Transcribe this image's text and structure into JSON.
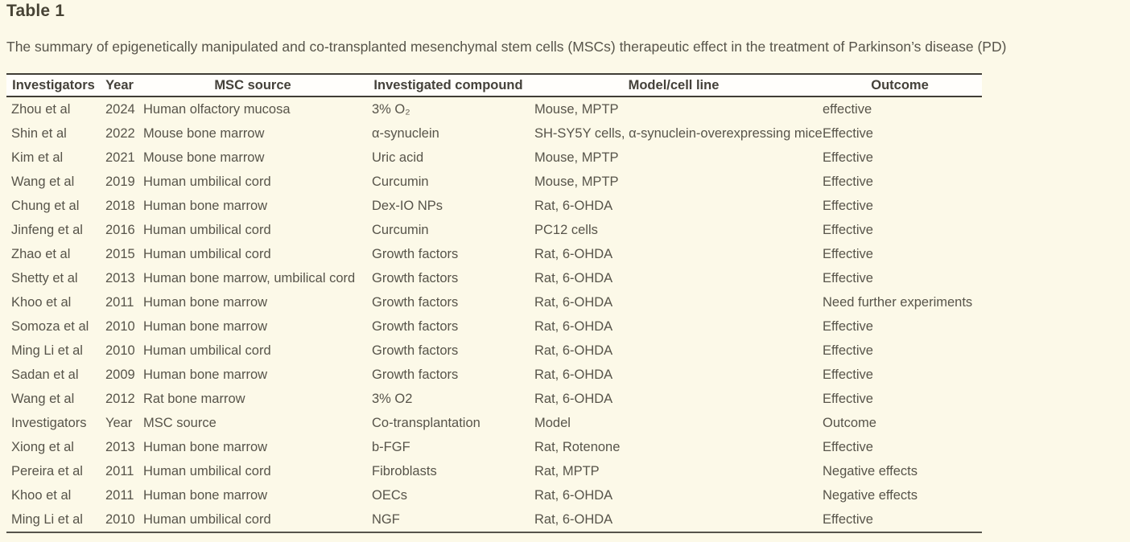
{
  "colors": {
    "page_background": "#fcf9e8",
    "header_background": "#fffefb",
    "border": "#403d35",
    "title_text": "#474335",
    "body_text": "#57544a"
  },
  "table": {
    "title": "Table 1",
    "caption": "The summary of epigenetically manipulated and co-transplanted mesenchymal stem cells (MSCs) therapeutic effect in the treatment of Parkinson’s disease (PD)",
    "columns": [
      "Investigators",
      "Year",
      "MSC source",
      "Investigated compound",
      "Model/cell line",
      "Outcome"
    ],
    "rows": [
      [
        "Zhou et al",
        "2024",
        "Human olfactory mucosa",
        "3% O₂",
        "Mouse, MPTP",
        "effective"
      ],
      [
        "Shin et al",
        "2022",
        "Mouse bone marrow",
        "α-synuclein",
        "SH-SY5Y cells, α-synuclein-overexpressing mice",
        "Effective"
      ],
      [
        "Kim et al",
        "2021",
        "Mouse bone marrow",
        "Uric acid",
        "Mouse, MPTP",
        "Effective"
      ],
      [
        "Wang et al",
        "2019",
        "Human umbilical cord",
        "Curcumin",
        "Mouse, MPTP",
        "Effective"
      ],
      [
        "Chung et al",
        "2018",
        "Human bone marrow",
        "Dex-IO NPs",
        "Rat, 6-OHDA",
        "Effective"
      ],
      [
        "Jinfeng et al",
        "2016",
        "Human umbilical cord",
        "Curcumin",
        "PC12 cells",
        "Effective"
      ],
      [
        "Zhao et al",
        "2015",
        "Human umbilical cord",
        "Growth factors",
        "Rat, 6-OHDA",
        "Effective"
      ],
      [
        "Shetty et al",
        "2013",
        "Human bone marrow, umbilical cord",
        "Growth factors",
        "Rat, 6-OHDA",
        "Effective"
      ],
      [
        "Khoo et al",
        "2011",
        "Human bone marrow",
        "Growth factors",
        "Rat, 6-OHDA",
        "Need further experiments"
      ],
      [
        "Somoza et al",
        "2010",
        "Human bone marrow",
        "Growth factors",
        "Rat, 6-OHDA",
        "Effective"
      ],
      [
        "Ming Li et al",
        "2010",
        "Human umbilical cord",
        "Growth factors",
        "Rat, 6-OHDA",
        "Effective"
      ],
      [
        "Sadan et al",
        "2009",
        "Human bone marrow",
        "Growth factors",
        "Rat, 6-OHDA",
        "Effective"
      ],
      [
        "Wang et al",
        "2012",
        "Rat bone marrow",
        "3% O2",
        "Rat, 6-OHDA",
        "Effective"
      ],
      [
        "Investigators",
        "Year",
        "MSC source",
        "Co-transplantation",
        "Model",
        "Outcome"
      ],
      [
        "Xiong et al",
        "2013",
        "Human bone marrow",
        "b-FGF",
        "Rat, Rotenone",
        "Effective"
      ],
      [
        "Pereira et al",
        "2011",
        "Human umbilical cord",
        "Fibroblasts",
        "Rat, MPTP",
        "Negative effects"
      ],
      [
        "Khoo et al",
        "2011",
        "Human bone marrow",
        "OECs",
        "Rat, 6-OHDA",
        "Negative effects"
      ],
      [
        "Ming Li et al",
        "2010",
        "Human umbilical cord",
        "NGF",
        "Rat, 6-OHDA",
        "Effective"
      ]
    ]
  }
}
